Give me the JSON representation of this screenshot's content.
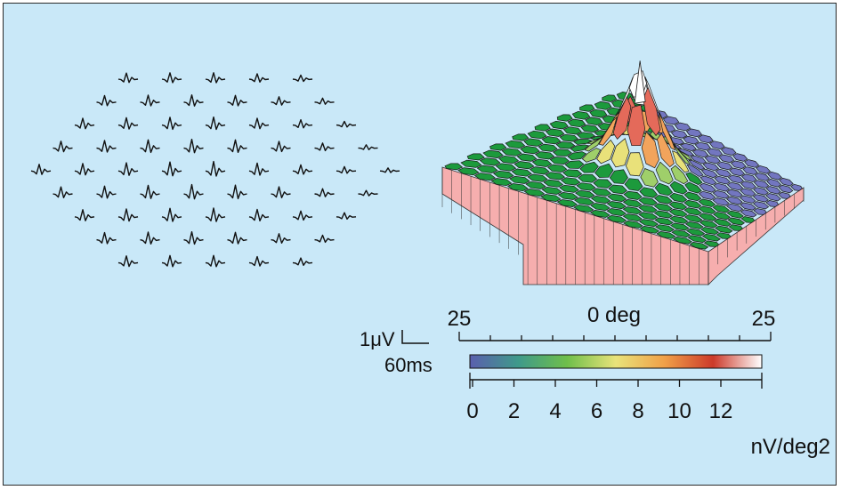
{
  "figure": {
    "colors": {
      "background": "#c9e8f8",
      "border": "#2a2a2a",
      "trace": "#111111",
      "green": "#1c9a3c",
      "blue": "#7276c0",
      "side": "#f6aeae"
    },
    "trace_array": {
      "rows": [
        5,
        6,
        7,
        8,
        9,
        8,
        7,
        6,
        5
      ]
    },
    "calibration": {
      "amplitude_label": "1μV",
      "time_label": "60ms"
    },
    "degree_scale": {
      "left_label": "25",
      "center_label": "0 deg",
      "right_label": "25"
    },
    "color_bar": {
      "ticks": [
        "0",
        "2",
        "4",
        "6",
        "8",
        "10",
        "12"
      ],
      "unit_label": "nV/deg2",
      "gradient": [
        "#5a5fae",
        "#3f9a8a",
        "#6fbf4a",
        "#e9e37a",
        "#f0a048",
        "#cc3a2a",
        "#ffffff"
      ]
    }
  }
}
